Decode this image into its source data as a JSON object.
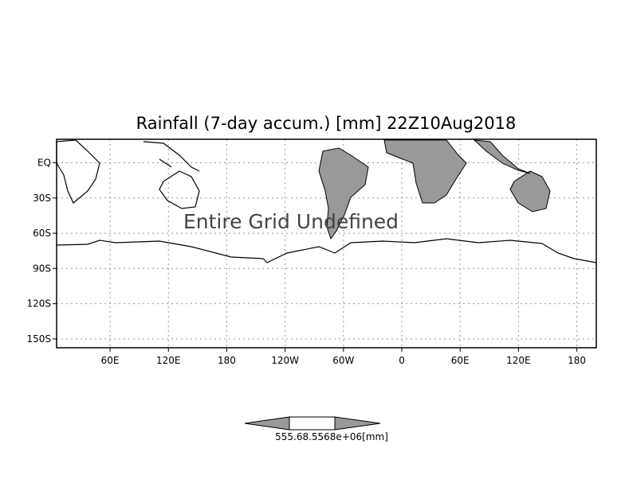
{
  "map": {
    "title": "Rainfall (7-day accum.) [mm] 22Z10Aug2018",
    "annotation": "Entire Grid Undefined",
    "xlim": [
      5,
      560
    ],
    "ylim": [
      -157.5,
      20
    ],
    "xticks": [
      {
        "value": 60,
        "label": "60E"
      },
      {
        "value": 120,
        "label": "120E"
      },
      {
        "value": 180,
        "label": "180"
      },
      {
        "value": 240,
        "label": "120W"
      },
      {
        "value": 300,
        "label": "60W"
      },
      {
        "value": 360,
        "label": "0"
      },
      {
        "value": 420,
        "label": "60E"
      },
      {
        "value": 480,
        "label": "120E"
      },
      {
        "value": 540,
        "label": "180"
      }
    ],
    "yticks": [
      {
        "value": 0,
        "label": "EQ"
      },
      {
        "value": -30,
        "label": "30S"
      },
      {
        "value": -60,
        "label": "60S"
      },
      {
        "value": -90,
        "label": "90S"
      },
      {
        "value": -120,
        "label": "120S"
      },
      {
        "value": -150,
        "label": "150S"
      }
    ],
    "colorbar_label": "555.68.5568e+06[mm]",
    "grid": true
  }
}
